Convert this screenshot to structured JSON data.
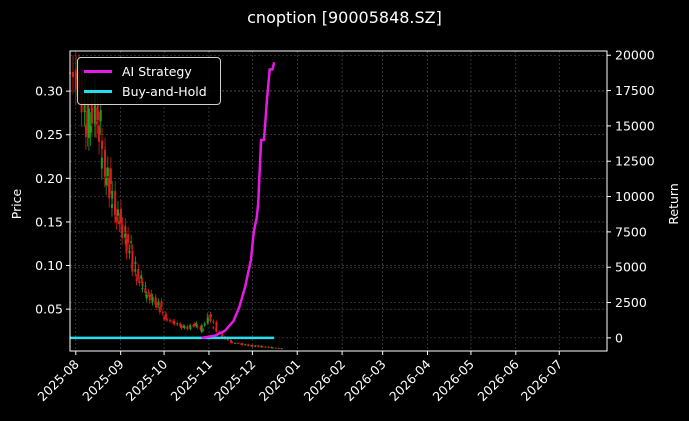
{
  "title": "cnoption [90005848.SZ]",
  "colors": {
    "background": "#000000",
    "strategy": "#e619e6",
    "buy_hold": "#22e0f0",
    "candle_up": "#1fa01f",
    "candle_down": "#e01a1a",
    "grid": "#555555"
  },
  "legend": {
    "items": [
      {
        "label": "AI Strategy",
        "color": "#e619e6"
      },
      {
        "label": "Buy-and-Hold",
        "color": "#22e0f0"
      }
    ]
  },
  "chart_data": {
    "type": "line",
    "title": "cnoption [90005848.SZ]",
    "xlabel": "",
    "ylabel": "Price",
    "y2label": "Return",
    "x_ticks": [
      "2025-08",
      "2025-09",
      "2025-10",
      "2025-11",
      "2025-12",
      "2026-01",
      "2026-02",
      "2026-03",
      "2026-04",
      "2026-05",
      "2026-06",
      "2026-07"
    ],
    "y_ticks": [
      0.05,
      0.1,
      0.15,
      0.2,
      0.25,
      0.3
    ],
    "y2_ticks": [
      0,
      2500,
      5000,
      7500,
      10000,
      12500,
      15000,
      17500,
      20000
    ],
    "ylim": [
      0.002,
      0.346
    ],
    "y2lim": [
      -930,
      20300
    ],
    "grid": true,
    "legend_position": "upper left",
    "candlestick_price": {
      "dates": [
        "2025-07-28",
        "2025-08-01",
        "2025-08-05",
        "2025-08-08",
        "2025-08-12",
        "2025-08-15",
        "2025-08-19",
        "2025-08-22",
        "2025-08-26",
        "2025-08-29",
        "2025-09-02",
        "2025-09-05",
        "2025-09-09",
        "2025-09-12",
        "2025-09-16",
        "2025-09-19",
        "2025-09-23",
        "2025-09-26",
        "2025-10-01",
        "2025-10-08",
        "2025-10-13",
        "2025-10-17",
        "2025-10-22",
        "2025-10-27",
        "2025-10-31",
        "2025-11-04",
        "2025-11-10",
        "2025-11-17",
        "2025-11-24",
        "2025-12-01",
        "2025-12-08",
        "2025-12-15"
      ],
      "close": [
        0.315,
        0.3,
        0.25,
        0.285,
        0.27,
        0.22,
        0.2,
        0.17,
        0.155,
        0.14,
        0.125,
        0.1,
        0.085,
        0.075,
        0.065,
        0.06,
        0.055,
        0.04,
        0.035,
        0.03,
        0.028,
        0.033,
        0.025,
        0.045,
        0.03,
        0.02,
        0.012,
        0.01,
        0.008,
        0.007,
        0.006,
        0.005
      ]
    },
    "series": [
      {
        "name": "AI Strategy",
        "x": [
          "2025-10-27",
          "2025-11-05",
          "2025-11-12",
          "2025-11-18",
          "2025-11-22",
          "2025-11-26",
          "2025-11-30",
          "2025-12-02",
          "2025-12-04",
          "2025-12-05",
          "2025-12-07",
          "2025-12-09",
          "2025-12-11",
          "2025-12-13",
          "2025-12-15",
          "2025-12-16"
        ],
        "values": [
          0,
          150,
          500,
          1200,
          2200,
          3600,
          5500,
          7500,
          8500,
          9500,
          14000,
          14000,
          16800,
          19000,
          19000,
          19500
        ]
      },
      {
        "name": "Buy-and-Hold",
        "x": [
          "2025-07-28",
          "2025-12-16"
        ],
        "values": [
          0,
          0
        ]
      }
    ]
  },
  "axes": {
    "left_label": "Price",
    "right_label": "Return"
  }
}
